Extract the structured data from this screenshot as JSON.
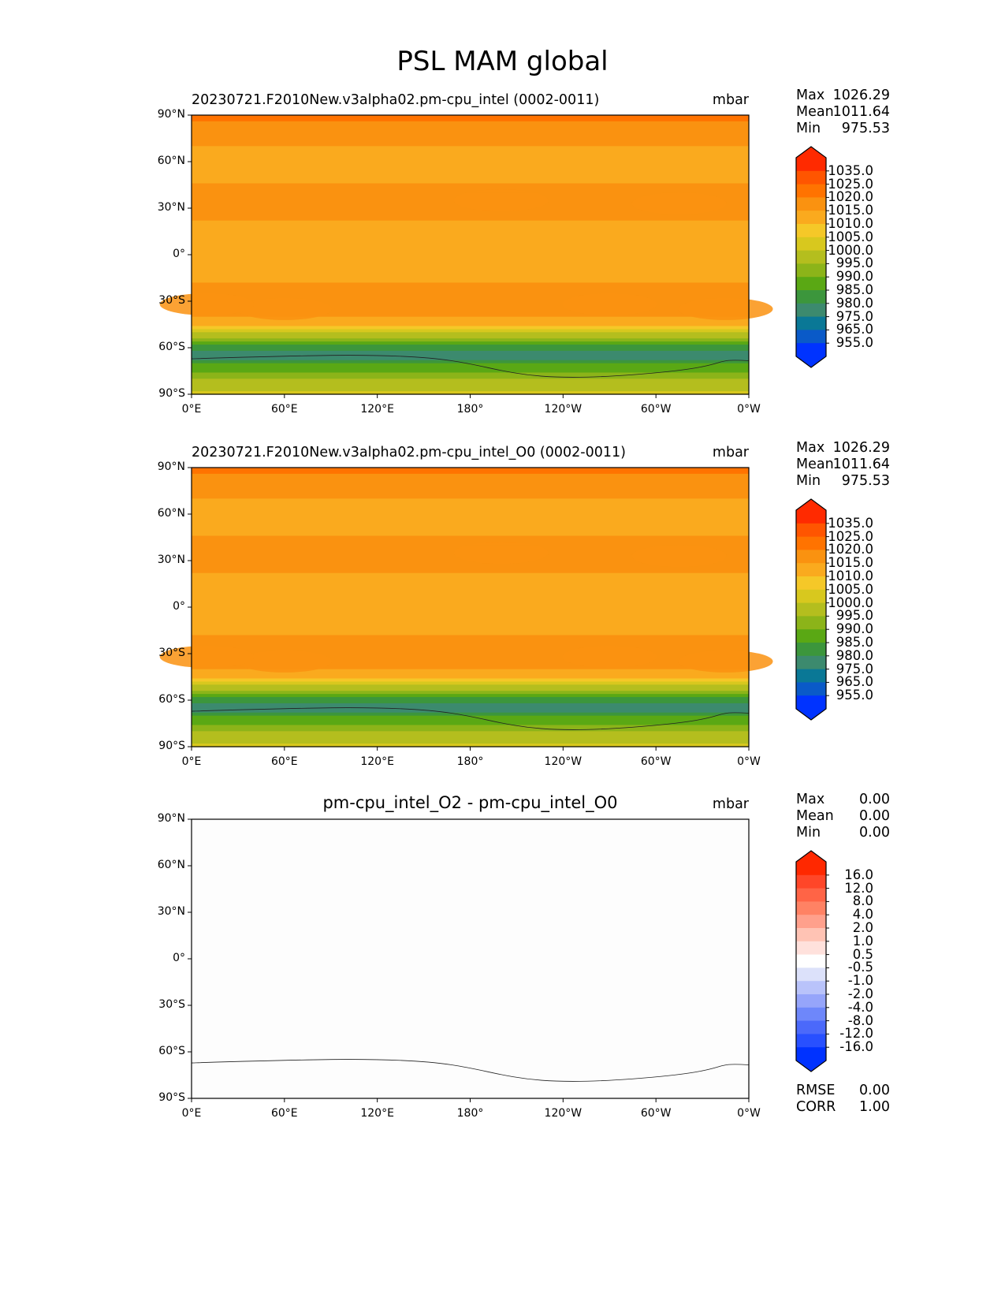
{
  "main_title": "PSL MAM global",
  "chart_data": [
    {
      "type": "heatmap",
      "title": "20230721.F2010New.v3alpha02.pm-cpu_intel (0002-0011)",
      "units": "mbar",
      "stats": {
        "max_label": "Max",
        "max": "1026.29",
        "mean_label": "Mean",
        "mean": "1011.64",
        "min_label": "Min",
        "min": "975.53"
      },
      "xticks": [
        "0°E",
        "60°E",
        "120°E",
        "180°",
        "120°W",
        "60°W",
        "0°W"
      ],
      "yticks": [
        "90°N",
        "60°N",
        "30°N",
        "0°",
        "30°S",
        "60°S",
        "90°S"
      ],
      "colorbar_labels": [
        "1035.0",
        "1025.0",
        "1020.0",
        "1015.0",
        "1010.0",
        "1005.0",
        "1000.0",
        "995.0",
        "990.0",
        "985.0",
        "980.0",
        "975.0",
        "965.0",
        "955.0"
      ],
      "colorbar_colors": [
        "#ff2a00",
        "#ff5500",
        "#ff7300",
        "#fa9210",
        "#faaa1e",
        "#f5c828",
        "#d8c81e",
        "#b4be1e",
        "#8cb419",
        "#5aa814",
        "#3c963c",
        "#3c8a6e",
        "#0a7896",
        "#0a5ac8",
        "#0033ff"
      ],
      "zonal_mean_approx": {
        "lat": [
          90,
          75,
          60,
          45,
          30,
          15,
          0,
          -15,
          -30,
          -40,
          -45,
          -50,
          -55,
          -60,
          -65,
          -70,
          -80,
          -90
        ],
        "psl": [
          1021,
          1016,
          1013,
          1015,
          1017,
          1013,
          1011,
          1014,
          1018,
          1015,
          1010,
          1001,
          991,
          983,
          977,
          984,
          995,
          1001
        ]
      }
    },
    {
      "type": "heatmap",
      "title": "20230721.F2010New.v3alpha02.pm-cpu_intel_O0 (0002-0011)",
      "units": "mbar",
      "stats": {
        "max_label": "Max",
        "max": "1026.29",
        "mean_label": "Mean",
        "mean": "1011.64",
        "min_label": "Min",
        "min": "975.53"
      },
      "xticks": [
        "0°E",
        "60°E",
        "120°E",
        "180°",
        "120°W",
        "60°W",
        "0°W"
      ],
      "yticks": [
        "90°N",
        "60°N",
        "30°N",
        "0°",
        "30°S",
        "60°S",
        "90°S"
      ],
      "colorbar_labels": [
        "1035.0",
        "1025.0",
        "1020.0",
        "1015.0",
        "1010.0",
        "1005.0",
        "1000.0",
        "995.0",
        "990.0",
        "985.0",
        "980.0",
        "975.0",
        "965.0",
        "955.0"
      ],
      "colorbar_colors": [
        "#ff2a00",
        "#ff5500",
        "#ff7300",
        "#fa9210",
        "#faaa1e",
        "#f5c828",
        "#d8c81e",
        "#b4be1e",
        "#8cb419",
        "#5aa814",
        "#3c963c",
        "#3c8a6e",
        "#0a7896",
        "#0a5ac8",
        "#0033ff"
      ],
      "zonal_mean_approx": {
        "lat": [
          90,
          75,
          60,
          45,
          30,
          15,
          0,
          -15,
          -30,
          -40,
          -45,
          -50,
          -55,
          -60,
          -65,
          -70,
          -80,
          -90
        ],
        "psl": [
          1021,
          1016,
          1013,
          1015,
          1017,
          1013,
          1011,
          1014,
          1018,
          1015,
          1010,
          1001,
          991,
          983,
          977,
          984,
          995,
          1001
        ]
      }
    },
    {
      "type": "heatmap",
      "title": "pm-cpu_intel_O2 - pm-cpu_intel_O0",
      "units": "mbar",
      "stats": {
        "max_label": "Max",
        "max": "0.00",
        "mean_label": "Mean",
        "mean": "0.00",
        "min_label": "Min",
        "min": "0.00"
      },
      "metrics": {
        "rmse_label": "RMSE",
        "rmse": "0.00",
        "corr_label": "CORR",
        "corr": "1.00"
      },
      "xticks": [
        "0°E",
        "60°E",
        "120°E",
        "180°",
        "120°W",
        "60°W",
        "0°W"
      ],
      "yticks": [
        "90°N",
        "60°N",
        "30°N",
        "0°",
        "30°S",
        "60°S",
        "90°S"
      ],
      "colorbar_labels": [
        "16.0",
        "12.0",
        "8.0",
        "4.0",
        "2.0",
        "1.0",
        "0.5",
        "-0.5",
        "-1.0",
        "-2.0",
        "-4.0",
        "-8.0",
        "-12.0",
        "-16.0"
      ],
      "colorbar_colors": [
        "#ff2800",
        "#ff4628",
        "#ff6446",
        "#ff8264",
        "#ffa08c",
        "#ffc3b4",
        "#ffe1dc",
        "#ffffff",
        "#dce1fa",
        "#b9c3fa",
        "#96a5fa",
        "#6e87fa",
        "#4b69fa",
        "#2850ff",
        "#0032ff"
      ],
      "field_value": 0.0
    }
  ]
}
